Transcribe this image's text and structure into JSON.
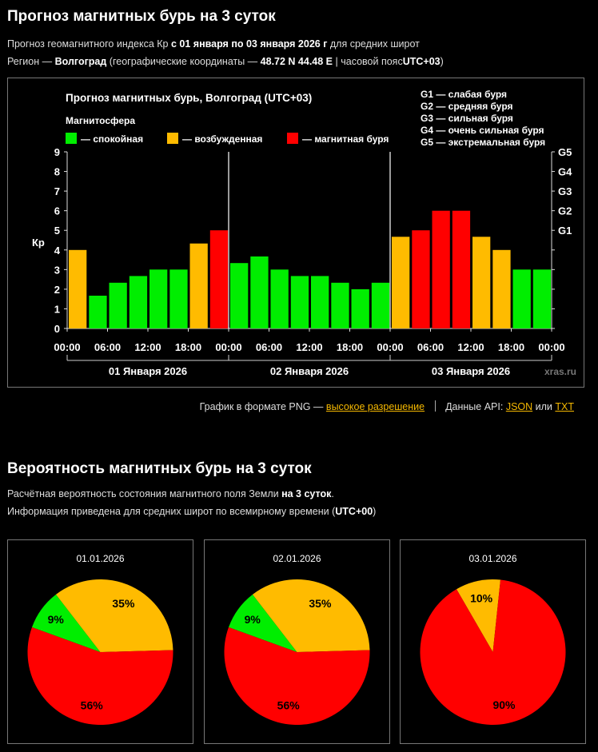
{
  "header": {
    "title": "Прогноз магнитных бурь на 3 суток",
    "line1_prefix": "Прогноз геомагнитного индекса Кр",
    "line1_period": "с 01 января по 03 января 2026 г",
    "line1_suffix": "для средних широт",
    "line2_prefix": "Регион —",
    "line2_region": "Волгоград",
    "line2_coords_prefix": "(географические координаты —",
    "line2_coords": "48.72 N 44.48 E",
    "line2_tz_prefix": "| часовой пояс",
    "line2_tz": "UTC+03",
    "line2_close": ")"
  },
  "chart_data": {
    "type": "bar",
    "title": "Прогноз магнитных бурь, Волгоград (UTC+03)",
    "legend_title": "Магнитосфера",
    "legend": [
      {
        "label": "— спокойная",
        "color": "#00ee00"
      },
      {
        "label": "— возбужденная",
        "color": "#ffbb00"
      },
      {
        "label": "— магнитная буря",
        "color": "#ff0000"
      }
    ],
    "storm_levels": [
      "G1 — слабая буря",
      "G2 — средняя буря",
      "G3 — сильная буря",
      "G4 — очень сильная буря",
      "G5 — экстремальная буря"
    ],
    "ylabel": "Кр",
    "ylim": [
      0,
      9
    ],
    "y_ticks": [
      "0",
      "1",
      "2",
      "3",
      "4",
      "5",
      "6",
      "7",
      "8",
      "9"
    ],
    "right_ticks": [
      {
        "value": 5,
        "label": "G1"
      },
      {
        "value": 6,
        "label": "G2"
      },
      {
        "value": 7,
        "label": "G3"
      },
      {
        "value": 8,
        "label": "G4"
      },
      {
        "value": 9,
        "label": "G5"
      }
    ],
    "x_tick_labels": [
      "00:00",
      "06:00",
      "12:00",
      "18:00",
      "00:00",
      "06:00",
      "12:00",
      "18:00",
      "00:00",
      "06:00",
      "12:00",
      "18:00",
      "00:00"
    ],
    "days": [
      "01 Января 2026",
      "02 Января 2026",
      "03 Января 2026"
    ],
    "values": [
      4.0,
      1.67,
      2.33,
      2.67,
      3.0,
      3.0,
      4.33,
      5.0,
      3.33,
      3.67,
      3.0,
      2.67,
      2.67,
      2.33,
      2.0,
      2.33,
      4.67,
      5.0,
      6.0,
      6.0,
      4.67,
      4.0,
      3.0,
      3.0
    ],
    "colors": {
      "quiet": "#00ee00",
      "active": "#ffbb00",
      "storm": "#ff0000"
    },
    "watermark": "xras.ru"
  },
  "links": {
    "png_prefix": "График в формате PNG —",
    "png_link": "высокое разрешение",
    "api_prefix": "Данные API:",
    "json": "JSON",
    "or": "или",
    "txt": "TXT"
  },
  "prob": {
    "title": "Вероятность магнитных бурь на 3 суток",
    "line1_prefix": "Расчётная вероятность состояния магнитного поля Земли",
    "line1_bold": "на 3 суток",
    "line1_suffix": ".",
    "line2_prefix": "Информация приведена для средних широт по всемирному времени (",
    "line2_bold": "UTC+00",
    "line2_suffix": ")"
  },
  "pies": [
    {
      "date": "01.01.2026",
      "slices": [
        {
          "state": "quiet",
          "value": 9,
          "label": "9%"
        },
        {
          "state": "active",
          "value": 35,
          "label": "35%"
        },
        {
          "state": "storm",
          "value": 56,
          "label": "56%"
        }
      ]
    },
    {
      "date": "02.01.2026",
      "slices": [
        {
          "state": "quiet",
          "value": 9,
          "label": "9%"
        },
        {
          "state": "active",
          "value": 35,
          "label": "35%"
        },
        {
          "state": "storm",
          "value": 56,
          "label": "56%"
        }
      ]
    },
    {
      "date": "03.01.2026",
      "slices": [
        {
          "state": "active",
          "value": 10,
          "label": "10%"
        },
        {
          "state": "storm",
          "value": 90,
          "label": "90%"
        }
      ]
    }
  ]
}
